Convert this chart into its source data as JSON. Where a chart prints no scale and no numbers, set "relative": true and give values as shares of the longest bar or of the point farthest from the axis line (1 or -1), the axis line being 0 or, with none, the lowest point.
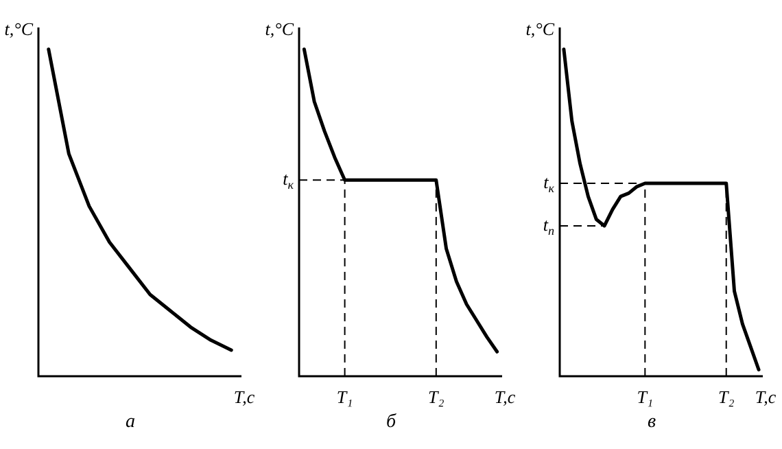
{
  "chart_data": [
    {
      "type": "line",
      "title": "а",
      "xlabel": "T,с",
      "ylabel": "t,°C",
      "relative": true,
      "marker": "none",
      "legend": false,
      "categories": [
        null,
        null,
        null,
        null,
        null,
        null,
        null,
        null,
        null,
        null
      ],
      "series": [
        {
          "color": "#000000",
          "values": [
            1,
            0.68,
            0.52,
            0.41,
            0.33,
            0.25,
            0.2,
            0.15,
            0.11,
            0.08
          ]
        }
      ]
    },
    {
      "type": "line",
      "title": "б",
      "xlabel": "T,с",
      "ylabel": "t,°C",
      "relative": true,
      "marker": "none",
      "legend": false,
      "categories": [
        null,
        null,
        null,
        null,
        "T₁",
        null,
        null,
        null,
        null,
        null,
        null,
        null,
        null,
        "T₂",
        null,
        null,
        null,
        null,
        null,
        null
      ],
      "series": [
        {
          "color": "#000000",
          "values": [
            1,
            0.84,
            0.75,
            0.67,
            0.6,
            0.6,
            0.6,
            0.6,
            0.6,
            0.6,
            0.6,
            0.6,
            0.6,
            0.6,
            0.39,
            0.29,
            0.22,
            0.17,
            0.12,
            0.075
          ]
        }
      ],
      "ref_lines": [
        {
          "axis": "x",
          "value": "T₁",
          "line_style": "dashed"
        },
        {
          "axis": "x",
          "value": "T₂",
          "line_style": "dashed"
        },
        {
          "axis": "y",
          "value": 0.6,
          "label": "t$_{к}$",
          "line_style": "dashed"
        }
      ]
    },
    {
      "type": "line",
      "title": "в",
      "xlabel": "T,с",
      "ylabel": "t,°C",
      "relative": true,
      "marker": "none",
      "legend": false,
      "categories": [
        null,
        null,
        null,
        null,
        null,
        null,
        null,
        null,
        null,
        null,
        "T₁",
        null,
        null,
        null,
        null,
        null,
        null,
        null,
        null,
        null,
        "T₂",
        null,
        null,
        null,
        null
      ],
      "series": [
        {
          "color": "#000000",
          "values": [
            1,
            0.78,
            0.65,
            0.55,
            0.48,
            0.46,
            0.51,
            0.55,
            0.56,
            0.58,
            0.59,
            0.59,
            0.59,
            0.59,
            0.59,
            0.59,
            0.59,
            0.59,
            0.59,
            0.59,
            0.59,
            0.26,
            0.16,
            0.09,
            0.02
          ]
        }
      ],
      "ref_lines": [
        {
          "axis": "x",
          "value": "T₁",
          "line_style": "dashed"
        },
        {
          "axis": "x",
          "value": "T₂",
          "line_style": "dashed"
        },
        {
          "axis": "y",
          "value": 0.59,
          "label": "t$_{к}$",
          "line_style": "dashed"
        },
        {
          "axis": "y",
          "value": 0.46,
          "label": "t$_{п}$",
          "line_style": "dashed"
        }
      ]
    }
  ]
}
